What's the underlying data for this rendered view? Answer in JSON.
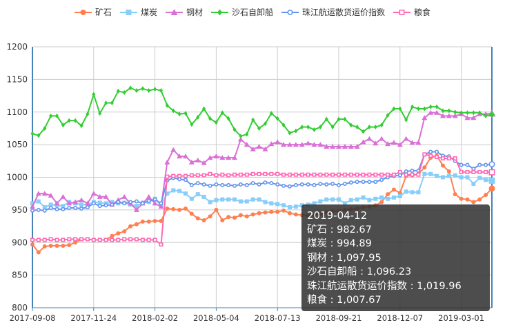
{
  "chart_data": {
    "type": "line",
    "title": "",
    "xlabel": "",
    "ylabel": "",
    "ylim": [
      800,
      1200
    ],
    "yticks": [
      800,
      850,
      900,
      950,
      1000,
      1050,
      1100,
      1150,
      1200
    ],
    "grid": true,
    "legend_position": "top-center",
    "n_points": 76,
    "x_tick_labels": [
      {
        "index": 0,
        "label": "2017-09-08"
      },
      {
        "index": 10,
        "label": "2017-11-24"
      },
      {
        "index": 20,
        "label": "2018-02-02"
      },
      {
        "index": 30,
        "label": "2018-05-04"
      },
      {
        "index": 40,
        "label": "2018-07-13"
      },
      {
        "index": 50,
        "label": "2018-09-21"
      },
      {
        "index": 60,
        "label": "2018-12-07"
      },
      {
        "index": 70,
        "label": "2019-03-01"
      }
    ],
    "series": [
      {
        "name": "矿石",
        "color": "#ff7f50",
        "marker": "circle",
        "values": [
          897,
          885,
          894,
          895,
          895,
          895,
          896,
          900,
          905,
          905,
          904,
          904,
          904,
          910,
          914,
          917,
          925,
          928,
          932,
          932,
          933,
          933,
          952,
          951,
          950,
          952,
          944,
          937,
          934,
          940,
          950,
          934,
          939,
          938,
          942,
          940,
          943,
          945,
          946,
          947,
          947,
          949,
          945,
          943,
          942,
          941,
          942,
          944,
          946,
          948,
          948,
          950,
          951,
          952,
          954,
          955,
          957,
          962,
          974,
          981,
          976,
          1002,
          1003,
          1005,
          1015,
          1030,
          1033,
          1018,
          1009,
          974,
          967,
          966,
          962,
          966,
          973,
          982.67
        ]
      },
      {
        "name": "煤炭",
        "color": "#87cefa",
        "marker": "square",
        "values": [
          960,
          963,
          954,
          958,
          957,
          956,
          962,
          960,
          958,
          958,
          962,
          961,
          960,
          962,
          960,
          961,
          958,
          956,
          961,
          962,
          967,
          957,
          975,
          980,
          979,
          975,
          967,
          974,
          970,
          962,
          965,
          966,
          966,
          966,
          963,
          963,
          966,
          966,
          962,
          960,
          959,
          957,
          954,
          955,
          957,
          958,
          960,
          963,
          966,
          966,
          966,
          960,
          965,
          966,
          969,
          965,
          967,
          969,
          967,
          969,
          971,
          978,
          977,
          977,
          1005,
          1005,
          1002,
          1000,
          1002,
          1003,
          1000,
          1000,
          990,
          999,
          996,
          994.89
        ]
      },
      {
        "name": "钢材",
        "color": "#da70d6",
        "marker": "triangle",
        "values": [
          955,
          975,
          975,
          972,
          960,
          970,
          960,
          962,
          965,
          960,
          975,
          970,
          970,
          958,
          965,
          970,
          960,
          950,
          960,
          970,
          960,
          955,
          1023,
          1042,
          1032,
          1032,
          1023,
          1026,
          1022,
          1030,
          1032,
          1030,
          1030,
          1030,
          1058,
          1050,
          1043,
          1047,
          1043,
          1051,
          1054,
          1050,
          1050,
          1050,
          1050,
          1052,
          1050,
          1050,
          1047,
          1047,
          1047,
          1047,
          1047,
          1047,
          1054,
          1059,
          1052,
          1059,
          1051,
          1053,
          1050,
          1059,
          1053,
          1053,
          1091,
          1099,
          1099,
          1094,
          1094,
          1094,
          1097,
          1091,
          1091,
          1097,
          1097,
          1097.95
        ]
      },
      {
        "name": "沙石自卸船",
        "color": "#32cd32",
        "marker": "diamond",
        "values": [
          1067,
          1064,
          1075,
          1094,
          1094,
          1080,
          1087,
          1087,
          1079,
          1097,
          1127,
          1098,
          1114,
          1114,
          1132,
          1130,
          1137,
          1133,
          1136,
          1133,
          1135,
          1133,
          1110,
          1102,
          1097,
          1098,
          1081,
          1092,
          1105,
          1090,
          1084,
          1099,
          1090,
          1073,
          1063,
          1066,
          1088,
          1075,
          1082,
          1098,
          1090,
          1080,
          1068,
          1071,
          1077,
          1077,
          1073,
          1077,
          1089,
          1077,
          1089,
          1089,
          1080,
          1077,
          1070,
          1077,
          1077,
          1080,
          1095,
          1105,
          1105,
          1088,
          1108,
          1105,
          1105,
          1108,
          1108,
          1102,
          1102,
          1100,
          1099,
          1099,
          1099,
          1099,
          1094,
          1096.23
        ]
      },
      {
        "name": "珠江航运散货运价指数",
        "color": "#6495ed",
        "marker": "emptyCircle",
        "values": [
          949,
          950,
          949,
          953,
          951,
          951,
          953,
          953,
          952,
          954,
          960,
          956,
          957,
          958,
          962,
          960,
          962,
          963,
          960,
          964,
          966,
          960,
          995,
          999,
          997,
          996,
          988,
          991,
          989,
          987,
          989,
          988,
          988,
          987,
          989,
          988,
          991,
          989,
          992,
          991,
          989,
          987,
          986,
          988,
          989,
          989,
          988,
          990,
          989,
          990,
          988,
          990,
          992,
          993,
          993,
          993,
          993,
          996,
          1000,
          1002,
          1003,
          1009,
          1010,
          1010,
          1035,
          1039,
          1039,
          1033,
          1032,
          1025,
          1019,
          1019,
          1013,
          1019,
          1019,
          1019.96
        ]
      },
      {
        "name": "粮食",
        "color": "#ff69b4",
        "marker": "emptyRect",
        "values": [
          904,
          904,
          904,
          905,
          904,
          904,
          905,
          905,
          905,
          905,
          904,
          904,
          904,
          904,
          904,
          905,
          905,
          905,
          904,
          904,
          904,
          897,
          1001,
          1002,
          1002,
          1002,
          1003,
          1003,
          1003,
          1005,
          1003,
          1004,
          1003,
          1004,
          1004,
          1004,
          1005,
          1005,
          1005,
          1005,
          1005,
          1004,
          1004,
          1004,
          1004,
          1004,
          1004,
          1004,
          1004,
          1004,
          1004,
          1004,
          1004,
          1004,
          1004,
          1004,
          1004,
          1004,
          1004,
          1004,
          1008,
          1004,
          1004,
          1004,
          1035,
          1033,
          1031,
          1029,
          1029,
          1029,
          1008,
          1008,
          1008,
          1008,
          1008,
          1007.67
        ]
      }
    ]
  },
  "tooltip": {
    "date": "2019-04-12",
    "rows": [
      "矿石 : 982.67",
      "煤炭 : 994.89",
      "钢材 : 1,097.95",
      "沙石自卸船 : 1,096.23",
      "珠江航运散货运价指数 : 1,019.96",
      "粮食 : 1,007.67"
    ]
  }
}
